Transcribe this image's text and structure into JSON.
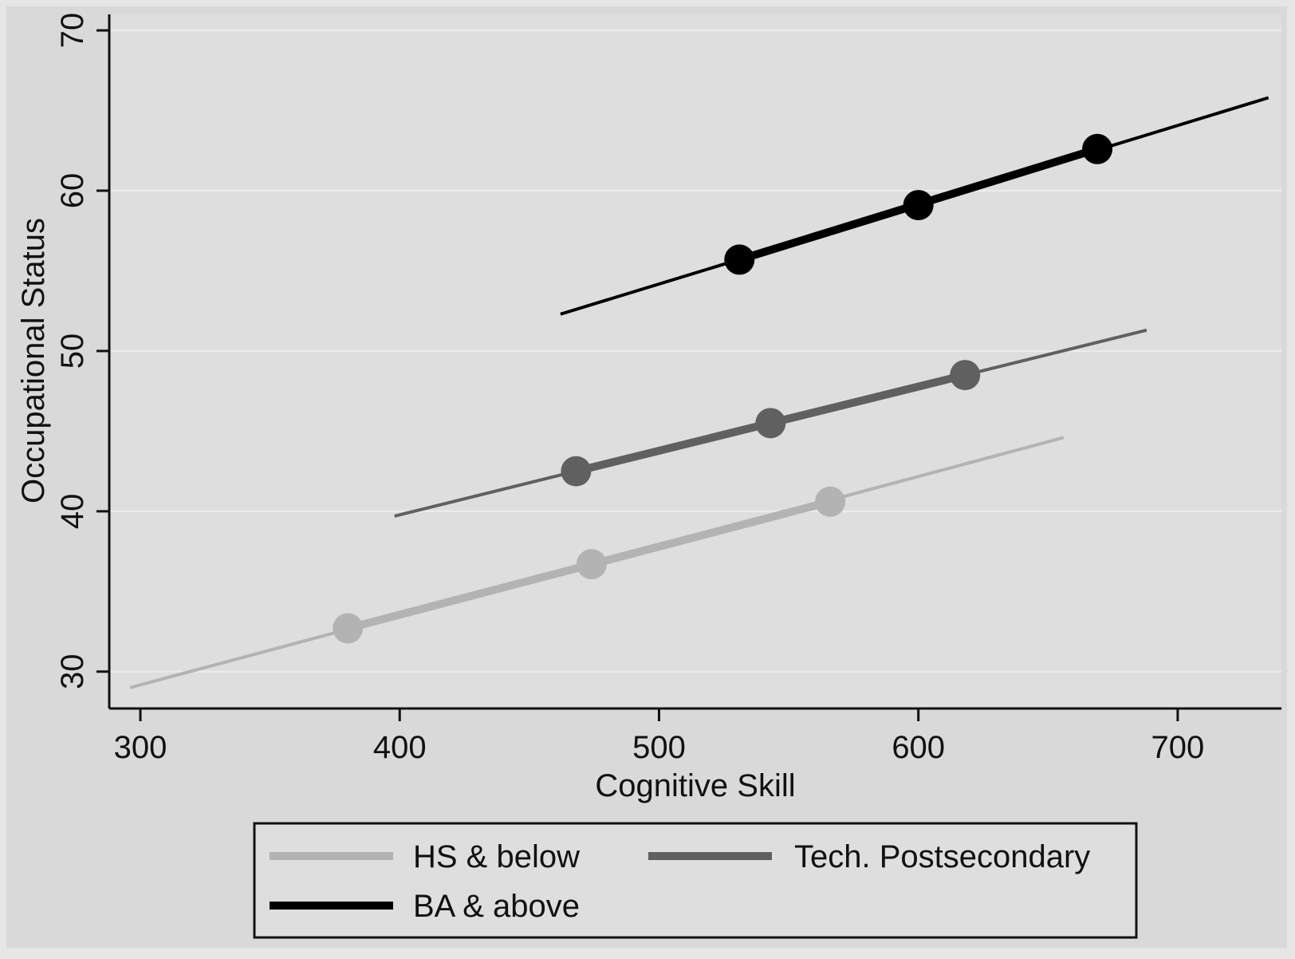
{
  "chart_data": {
    "type": "line",
    "xlabel": "Cognitive Skill",
    "ylabel": "Occupational Status",
    "xlim": [
      288,
      740
    ],
    "ylim": [
      27.7,
      71
    ],
    "x_ticks": [
      "300",
      "400",
      "500",
      "600",
      "700"
    ],
    "y_ticks": [
      "30",
      "40",
      "50",
      "60",
      "70"
    ],
    "grid": "horizontal",
    "legend_position": "bottom",
    "series": [
      {
        "name": "HS & below",
        "color": "#b3b3b3",
        "line": [
          [
            296,
            29.0
          ],
          [
            656,
            44.6
          ]
        ],
        "markers": [
          [
            380,
            32.7
          ],
          [
            474,
            36.7
          ],
          [
            566,
            40.6
          ]
        ]
      },
      {
        "name": "Tech. Postsecondary",
        "color": "#606060",
        "line": [
          [
            398,
            39.7
          ],
          [
            688,
            51.3
          ]
        ],
        "markers": [
          [
            468,
            42.5
          ],
          [
            543,
            45.5
          ],
          [
            618,
            48.5
          ]
        ]
      },
      {
        "name": "BA & above",
        "color": "#000000",
        "line": [
          [
            462,
            52.3
          ],
          [
            735,
            65.8
          ]
        ],
        "markers": [
          [
            531,
            55.7
          ],
          [
            600,
            59.1
          ],
          [
            669,
            62.6
          ]
        ]
      }
    ]
  }
}
